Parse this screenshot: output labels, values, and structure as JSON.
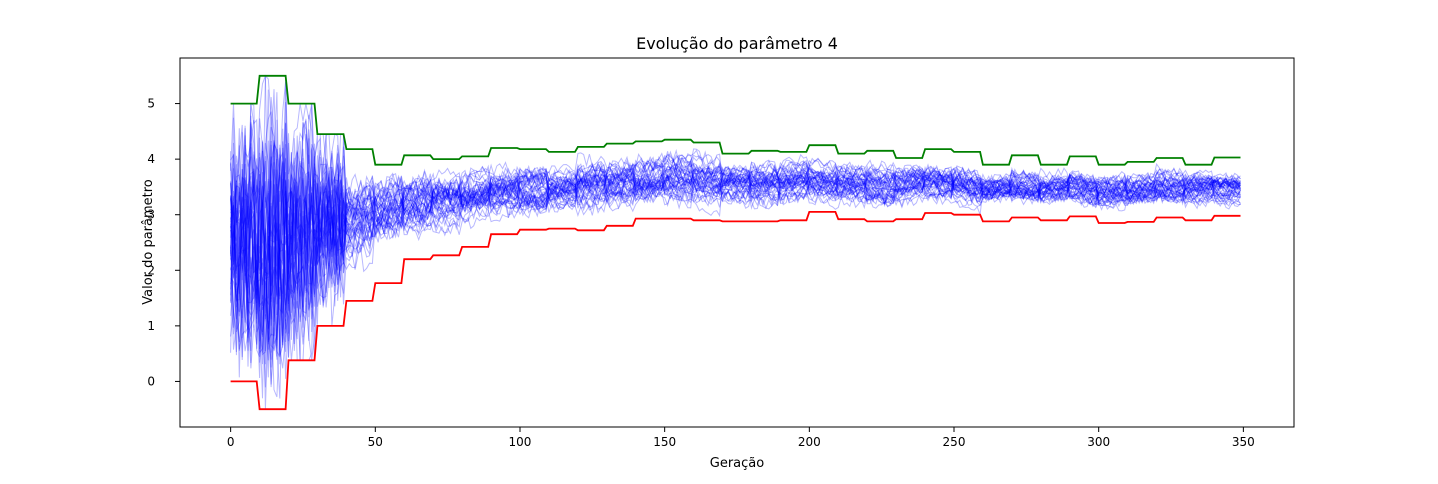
{
  "chart_data": {
    "type": "line",
    "title": "Evolução do parâmetro 4",
    "xlabel": "Geração",
    "ylabel": "Valor do parâmetro",
    "xlim": [
      -17.5,
      367.5
    ],
    "ylim": [
      -0.82,
      5.82
    ],
    "xticks": [
      0,
      50,
      100,
      150,
      200,
      250,
      300,
      350
    ],
    "yticks": [
      0,
      1,
      2,
      3,
      4,
      5
    ],
    "grid": false,
    "legend": "none",
    "colors": {
      "upper_bound": "#008000",
      "lower_bound": "#ff0000",
      "individuals": "#0000ff"
    },
    "series": [
      {
        "role": "upper_bound",
        "x": [
          0,
          10,
          20,
          30,
          40,
          50,
          60,
          70,
          80,
          90,
          100,
          110,
          120,
          130,
          140,
          150,
          160,
          170,
          180,
          190,
          200,
          210,
          220,
          230,
          240,
          250,
          260,
          270,
          280,
          290,
          300,
          310,
          320,
          330,
          340,
          349
        ],
        "values": [
          5.0,
          5.5,
          5.0,
          4.45,
          4.18,
          3.9,
          4.07,
          4.0,
          4.05,
          4.2,
          4.18,
          4.13,
          4.22,
          4.28,
          4.32,
          4.35,
          4.3,
          4.1,
          4.15,
          4.13,
          4.25,
          4.1,
          4.15,
          4.02,
          4.18,
          4.13,
          3.9,
          4.07,
          3.9,
          4.05,
          3.9,
          3.95,
          4.02,
          3.9,
          4.03,
          4.03
        ]
      },
      {
        "role": "lower_bound",
        "x": [
          0,
          10,
          20,
          30,
          40,
          50,
          60,
          70,
          80,
          90,
          100,
          110,
          120,
          130,
          140,
          150,
          160,
          170,
          180,
          190,
          200,
          210,
          220,
          230,
          240,
          250,
          260,
          270,
          280,
          290,
          300,
          310,
          320,
          330,
          340,
          349
        ],
        "values": [
          0.0,
          -0.5,
          0.38,
          1.0,
          1.45,
          1.77,
          2.2,
          2.27,
          2.42,
          2.65,
          2.73,
          2.75,
          2.72,
          2.8,
          2.93,
          2.93,
          2.9,
          2.88,
          2.88,
          2.9,
          3.05,
          2.92,
          2.88,
          2.92,
          3.03,
          3.0,
          2.88,
          2.95,
          2.9,
          2.97,
          2.85,
          2.87,
          2.95,
          2.9,
          2.98,
          2.98
        ]
      },
      {
        "role": "individuals",
        "description": "population trajectories",
        "x_range": [
          0,
          349
        ],
        "center": [
          [
            0,
            2.5
          ],
          [
            10,
            2.4
          ],
          [
            20,
            2.4
          ],
          [
            30,
            2.75
          ],
          [
            40,
            2.85
          ],
          [
            50,
            3.0
          ],
          [
            60,
            3.15
          ],
          [
            70,
            3.25
          ],
          [
            80,
            3.3
          ],
          [
            90,
            3.42
          ],
          [
            100,
            3.45
          ],
          [
            110,
            3.45
          ],
          [
            120,
            3.5
          ],
          [
            130,
            3.55
          ],
          [
            140,
            3.6
          ],
          [
            150,
            3.65
          ],
          [
            160,
            3.62
          ],
          [
            170,
            3.55
          ],
          [
            180,
            3.55
          ],
          [
            190,
            3.55
          ],
          [
            200,
            3.62
          ],
          [
            210,
            3.55
          ],
          [
            220,
            3.55
          ],
          [
            230,
            3.5
          ],
          [
            240,
            3.6
          ],
          [
            250,
            3.55
          ],
          [
            260,
            3.45
          ],
          [
            270,
            3.5
          ],
          [
            280,
            3.45
          ],
          [
            290,
            3.5
          ],
          [
            300,
            3.4
          ],
          [
            310,
            3.42
          ],
          [
            320,
            3.5
          ],
          [
            330,
            3.45
          ],
          [
            340,
            3.48
          ],
          [
            349,
            3.45
          ]
        ]
      }
    ]
  }
}
